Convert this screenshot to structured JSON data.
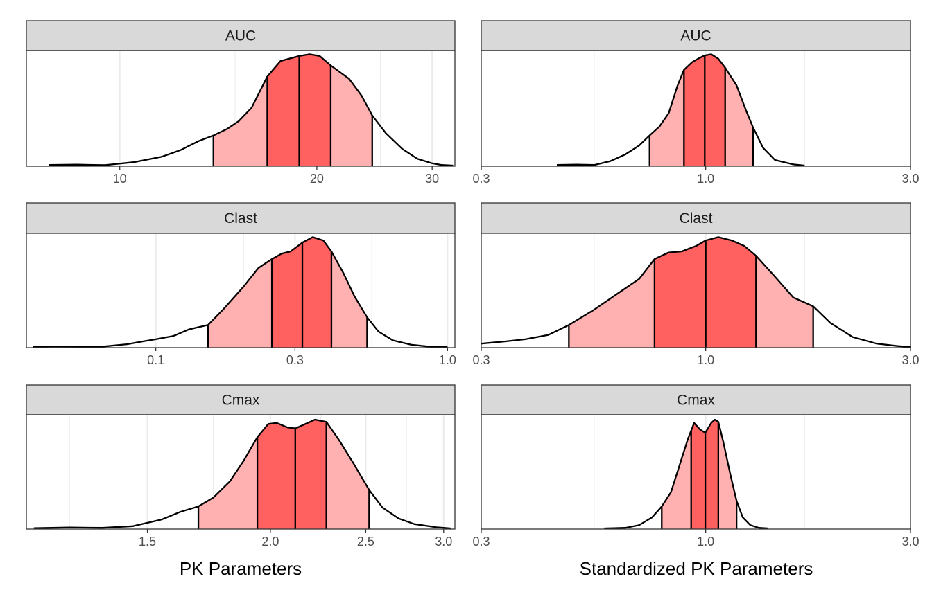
{
  "axis_titles": {
    "left": "PK Parameters",
    "right": "Standardized PK Parameters"
  },
  "colors": {
    "outer_band": "#ffb0b0",
    "inner_band": "#ff6060",
    "strip_bg": "#d9d9d9",
    "panel_border": "#333333",
    "grid": "#ebebeb",
    "outline": "#000000"
  },
  "chart_data": [
    {
      "type": "area",
      "subtype": "density",
      "column": "left",
      "row": 0,
      "strip": "AUC",
      "xscale": "log",
      "xlim": [
        7.2,
        32.5
      ],
      "ticks": [
        {
          "v": 10,
          "label": "10"
        },
        {
          "v": 20,
          "label": "20"
        },
        {
          "v": 30,
          "label": "30"
        }
      ],
      "minor_grid": [
        15,
        25
      ],
      "quantiles": {
        "q05": 13.9,
        "q25": 16.8,
        "q50": 18.8,
        "q75": 21.0,
        "q95": 24.3
      },
      "curve": [
        [
          7.8,
          0.005
        ],
        [
          8.6,
          0.008
        ],
        [
          9.5,
          0.004
        ],
        [
          10.5,
          0.03
        ],
        [
          11.6,
          0.08
        ],
        [
          12.4,
          0.14
        ],
        [
          13.2,
          0.22
        ],
        [
          13.9,
          0.27
        ],
        [
          14.6,
          0.33
        ],
        [
          15.2,
          0.4
        ],
        [
          15.9,
          0.52
        ],
        [
          16.8,
          0.8
        ],
        [
          17.6,
          0.94
        ],
        [
          18.8,
          0.985
        ],
        [
          19.5,
          1.0
        ],
        [
          20.2,
          0.985
        ],
        [
          21.0,
          0.9
        ],
        [
          22.4,
          0.78
        ],
        [
          23.4,
          0.63
        ],
        [
          24.3,
          0.45
        ],
        [
          25.5,
          0.29
        ],
        [
          27.0,
          0.15
        ],
        [
          28.5,
          0.06
        ],
        [
          30.0,
          0.02
        ],
        [
          31.0,
          0.005
        ],
        [
          32.3,
          0.0
        ]
      ]
    },
    {
      "type": "area",
      "subtype": "density",
      "column": "right",
      "row": 0,
      "strip": "AUC",
      "xscale": "log",
      "xlim": [
        0.3,
        3.0
      ],
      "ticks": [
        {
          "v": 0.3,
          "label": "0.3"
        },
        {
          "v": 1.0,
          "label": "1.0"
        },
        {
          "v": 3.0,
          "label": "3.0"
        }
      ],
      "minor_grid": [
        0.55,
        1.7
      ],
      "quantiles": {
        "q05": 0.74,
        "q25": 0.89,
        "q50": 0.995,
        "q75": 1.11,
        "q95": 1.29
      },
      "curve": [
        [
          0.45,
          0.005
        ],
        [
          0.5,
          0.008
        ],
        [
          0.55,
          0.005
        ],
        [
          0.6,
          0.04
        ],
        [
          0.65,
          0.1
        ],
        [
          0.7,
          0.18
        ],
        [
          0.74,
          0.27
        ],
        [
          0.78,
          0.35
        ],
        [
          0.82,
          0.47
        ],
        [
          0.86,
          0.72
        ],
        [
          0.89,
          0.86
        ],
        [
          0.93,
          0.93
        ],
        [
          0.97,
          0.97
        ],
        [
          0.995,
          0.99
        ],
        [
          1.03,
          1.0
        ],
        [
          1.07,
          0.96
        ],
        [
          1.11,
          0.88
        ],
        [
          1.18,
          0.72
        ],
        [
          1.24,
          0.5
        ],
        [
          1.29,
          0.34
        ],
        [
          1.36,
          0.16
        ],
        [
          1.45,
          0.05
        ],
        [
          1.6,
          0.01
        ],
        [
          1.7,
          0.0
        ]
      ]
    },
    {
      "type": "area",
      "subtype": "density",
      "column": "left",
      "row": 1,
      "strip": "Clast",
      "xscale": "log",
      "xlim": [
        0.036,
        1.06
      ],
      "ticks": [
        {
          "v": 0.1,
          "label": "0.1"
        },
        {
          "v": 0.3,
          "label": "0.3"
        },
        {
          "v": 1.0,
          "label": "1.0"
        }
      ],
      "minor_grid": [
        0.055,
        0.2,
        0.55
      ],
      "quantiles": {
        "q05": 0.151,
        "q25": 0.25,
        "q50": 0.318,
        "q75": 0.4,
        "q95": 0.53
      },
      "curve": [
        [
          0.038,
          0.003
        ],
        [
          0.045,
          0.005
        ],
        [
          0.055,
          0.004
        ],
        [
          0.065,
          0.002
        ],
        [
          0.08,
          0.025
        ],
        [
          0.09,
          0.05
        ],
        [
          0.1,
          0.07
        ],
        [
          0.115,
          0.1
        ],
        [
          0.13,
          0.16
        ],
        [
          0.151,
          0.2
        ],
        [
          0.17,
          0.34
        ],
        [
          0.2,
          0.55
        ],
        [
          0.225,
          0.72
        ],
        [
          0.25,
          0.8
        ],
        [
          0.27,
          0.85
        ],
        [
          0.29,
          0.87
        ],
        [
          0.318,
          0.95
        ],
        [
          0.345,
          1.0
        ],
        [
          0.375,
          0.97
        ],
        [
          0.4,
          0.87
        ],
        [
          0.44,
          0.67
        ],
        [
          0.48,
          0.46
        ],
        [
          0.53,
          0.27
        ],
        [
          0.58,
          0.14
        ],
        [
          0.65,
          0.06
        ],
        [
          0.75,
          0.02
        ],
        [
          0.85,
          0.005
        ],
        [
          1.0,
          0.0
        ]
      ]
    },
    {
      "type": "area",
      "subtype": "density",
      "column": "right",
      "row": 1,
      "strip": "Clast",
      "xscale": "log",
      "xlim": [
        0.3,
        3.0
      ],
      "ticks": [
        {
          "v": 0.3,
          "label": "0.3"
        },
        {
          "v": 1.0,
          "label": "1.0"
        },
        {
          "v": 3.0,
          "label": "3.0"
        }
      ],
      "minor_grid": [
        0.55,
        1.7
      ],
      "quantiles": {
        "q05": 0.48,
        "q25": 0.76,
        "q50": 1.0,
        "q75": 1.31,
        "q95": 1.78
      },
      "curve": [
        [
          0.3,
          0.03
        ],
        [
          0.34,
          0.05
        ],
        [
          0.38,
          0.07
        ],
        [
          0.43,
          0.11
        ],
        [
          0.48,
          0.2
        ],
        [
          0.55,
          0.34
        ],
        [
          0.62,
          0.48
        ],
        [
          0.7,
          0.62
        ],
        [
          0.76,
          0.8
        ],
        [
          0.82,
          0.86
        ],
        [
          0.88,
          0.87
        ],
        [
          0.95,
          0.92
        ],
        [
          1.0,
          0.97
        ],
        [
          1.07,
          1.0
        ],
        [
          1.15,
          0.97
        ],
        [
          1.23,
          0.92
        ],
        [
          1.31,
          0.83
        ],
        [
          1.45,
          0.64
        ],
        [
          1.6,
          0.45
        ],
        [
          1.78,
          0.37
        ],
        [
          1.95,
          0.22
        ],
        [
          2.2,
          0.09
        ],
        [
          2.5,
          0.03
        ],
        [
          2.8,
          0.008
        ],
        [
          3.0,
          0.0
        ]
      ]
    },
    {
      "type": "area",
      "subtype": "density",
      "column": "left",
      "row": 2,
      "strip": "Cmax",
      "xscale": "log",
      "xlim": [
        1.13,
        3.08
      ],
      "ticks": [
        {
          "v": 1.5,
          "label": "1.5"
        },
        {
          "v": 2.0,
          "label": "2.0"
        },
        {
          "v": 2.5,
          "label": "2.5"
        },
        {
          "v": 3.0,
          "label": "3.0"
        }
      ],
      "minor_grid": [
        1.25,
        1.75,
        2.25,
        2.75
      ],
      "quantiles": {
        "q05": 1.69,
        "q25": 1.94,
        "q50": 2.12,
        "q75": 2.28,
        "q95": 2.52
      },
      "curve": [
        [
          1.15,
          0.002
        ],
        [
          1.25,
          0.008
        ],
        [
          1.35,
          0.005
        ],
        [
          1.45,
          0.02
        ],
        [
          1.55,
          0.08
        ],
        [
          1.62,
          0.15
        ],
        [
          1.69,
          0.2
        ],
        [
          1.75,
          0.28
        ],
        [
          1.82,
          0.43
        ],
        [
          1.88,
          0.62
        ],
        [
          1.94,
          0.83
        ],
        [
          1.99,
          0.95
        ],
        [
          2.03,
          0.96
        ],
        [
          2.08,
          0.92
        ],
        [
          2.12,
          0.91
        ],
        [
          2.17,
          0.95
        ],
        [
          2.22,
          0.99
        ],
        [
          2.28,
          0.97
        ],
        [
          2.35,
          0.8
        ],
        [
          2.43,
          0.59
        ],
        [
          2.52,
          0.35
        ],
        [
          2.6,
          0.19
        ],
        [
          2.7,
          0.09
        ],
        [
          2.8,
          0.04
        ],
        [
          2.95,
          0.01
        ],
        [
          3.05,
          0.0
        ]
      ]
    },
    {
      "type": "area",
      "subtype": "density",
      "column": "right",
      "row": 2,
      "strip": "Cmax",
      "xscale": "log",
      "xlim": [
        0.3,
        3.0
      ],
      "ticks": [
        {
          "v": 0.3,
          "label": "0.3"
        },
        {
          "v": 1.0,
          "label": "1.0"
        },
        {
          "v": 3.0,
          "label": "3.0"
        }
      ],
      "minor_grid": [
        0.55,
        1.7
      ],
      "quantiles": {
        "q05": 0.79,
        "q25": 0.925,
        "q50": 0.998,
        "q75": 1.07,
        "q95": 1.18
      },
      "curve": [
        [
          0.58,
          0.0
        ],
        [
          0.65,
          0.005
        ],
        [
          0.7,
          0.03
        ],
        [
          0.75,
          0.1
        ],
        [
          0.79,
          0.2
        ],
        [
          0.83,
          0.33
        ],
        [
          0.87,
          0.58
        ],
        [
          0.91,
          0.82
        ],
        [
          0.94,
          0.96
        ],
        [
          0.97,
          0.9
        ],
        [
          0.998,
          0.87
        ],
        [
          1.03,
          0.96
        ],
        [
          1.05,
          0.99
        ],
        [
          1.07,
          0.97
        ],
        [
          1.1,
          0.78
        ],
        [
          1.14,
          0.5
        ],
        [
          1.18,
          0.25
        ],
        [
          1.22,
          0.1
        ],
        [
          1.27,
          0.03
        ],
        [
          1.33,
          0.005
        ],
        [
          1.4,
          0.0
        ]
      ]
    }
  ]
}
